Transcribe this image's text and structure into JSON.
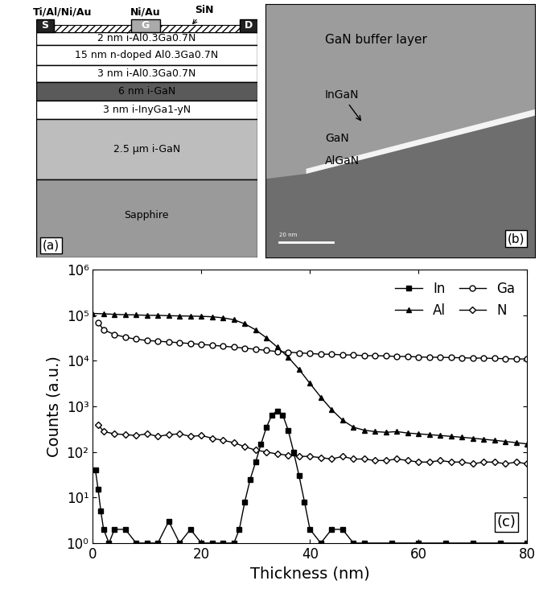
{
  "diagram": {
    "panel_label": "(a)",
    "contacts": {
      "source_metal": "Ti/Al/Ni/Au",
      "gate_metal": "Ni/Au",
      "passivation": "SiN",
      "source": "S",
      "gate": "G",
      "drain": "D"
    },
    "layers": [
      "2 nm i-Al0.3Ga0.7N",
      "15 nm n-doped Al0.3Ga0.7N",
      "3 nm i-Al0.3Ga0.7N",
      "6 nm i-GaN",
      "3 nm i-InyGa1-yN",
      "2.5 μm i-GaN",
      "Sapphire"
    ]
  },
  "image": {
    "panel_label": "(b)",
    "labels": [
      "GaN buffer layer",
      "InGaN",
      "GaN",
      "AlGaN"
    ],
    "scale_bar": "20 nm"
  },
  "chart_data": {
    "type": "line",
    "annotations": [
      "(c)"
    ],
    "x_label": "Thickness (nm)",
    "y_label": "Counts (a.u.)",
    "log": "y",
    "legend": "upper right",
    "xlim": [
      0,
      80
    ],
    "xticks": [
      0,
      20,
      40,
      60,
      80
    ],
    "ylim": [
      1,
      1000000
    ],
    "yticks": [
      {
        "value": 1,
        "label": "10⁰"
      },
      {
        "value": 10,
        "label": "10¹"
      },
      {
        "value": 100,
        "label": "10²"
      },
      {
        "value": 1000,
        "label": "10³"
      },
      {
        "value": 10000,
        "label": "10⁴"
      },
      {
        "value": 100000,
        "label": "10⁵"
      },
      {
        "value": 1000000,
        "label": "10⁶"
      }
    ],
    "series": [
      {
        "name": "In",
        "color": "#000000",
        "marker": "filled_square",
        "line_style": "solid",
        "x": [
          0.5,
          1,
          1.5,
          2,
          3,
          4,
          6,
          8,
          10,
          12,
          14,
          16,
          18,
          20,
          22,
          24,
          26,
          27,
          28,
          29,
          30,
          31,
          32,
          33,
          34,
          35,
          36,
          37,
          38,
          39,
          40,
          42,
          44,
          46,
          48,
          50,
          55,
          60,
          65,
          70,
          75,
          80
        ],
        "values": [
          40,
          15,
          5,
          2,
          1,
          2,
          2,
          1,
          1,
          1,
          3,
          1,
          2,
          1,
          1,
          1,
          1,
          2,
          8,
          25,
          60,
          150,
          350,
          650,
          800,
          650,
          300,
          100,
          30,
          8,
          2,
          1,
          2,
          2,
          1,
          1,
          1,
          1,
          1,
          1,
          1,
          1
        ]
      },
      {
        "name": "Ga",
        "color": "#000000",
        "marker": "open_circle",
        "line_style": "solid",
        "x": [
          1,
          2,
          4,
          6,
          8,
          10,
          12,
          14,
          16,
          18,
          20,
          22,
          24,
          26,
          28,
          30,
          32,
          34,
          36,
          38,
          40,
          42,
          44,
          46,
          48,
          50,
          52,
          54,
          56,
          58,
          60,
          62,
          64,
          66,
          68,
          70,
          72,
          74,
          76,
          78,
          80
        ],
        "values": [
          70000,
          48000,
          38000,
          33000,
          30000,
          28000,
          27000,
          26000,
          25000,
          24000,
          23000,
          22000,
          21000,
          20000,
          19000,
          18000,
          17000,
          16000,
          15500,
          15000,
          14500,
          14000,
          14000,
          13500,
          13500,
          13000,
          13000,
          12800,
          12500,
          12500,
          12200,
          12000,
          12000,
          11800,
          11700,
          11500,
          11500,
          11300,
          11200,
          11000,
          11000
        ]
      },
      {
        "name": "Al",
        "color": "#000000",
        "marker": "filled_triangle",
        "line_style": "solid",
        "x": [
          0,
          2,
          4,
          6,
          8,
          10,
          12,
          14,
          16,
          18,
          20,
          22,
          24,
          26,
          28,
          30,
          32,
          34,
          36,
          38,
          40,
          42,
          44,
          46,
          48,
          50,
          52,
          54,
          56,
          58,
          60,
          62,
          64,
          66,
          68,
          70,
          72,
          74,
          76,
          78,
          80
        ],
        "values": [
          110000,
          108000,
          105000,
          103000,
          102000,
          100000,
          100000,
          98000,
          97000,
          96000,
          95000,
          93000,
          88000,
          80000,
          65000,
          48000,
          32000,
          20000,
          12000,
          6500,
          3200,
          1600,
          850,
          500,
          350,
          300,
          280,
          270,
          280,
          260,
          250,
          240,
          230,
          220,
          210,
          200,
          190,
          180,
          170,
          160,
          150
        ]
      },
      {
        "name": "N",
        "color": "#000000",
        "marker": "open_diamond",
        "line_style": "solid",
        "x": [
          1,
          2,
          4,
          6,
          8,
          10,
          12,
          14,
          16,
          18,
          20,
          22,
          24,
          26,
          28,
          30,
          32,
          34,
          36,
          38,
          40,
          42,
          44,
          46,
          48,
          50,
          52,
          54,
          56,
          58,
          60,
          62,
          64,
          66,
          68,
          70,
          72,
          74,
          76,
          78,
          80
        ],
        "values": [
          400,
          280,
          250,
          240,
          230,
          250,
          220,
          240,
          250,
          220,
          230,
          200,
          180,
          160,
          130,
          110,
          100,
          90,
          85,
          80,
          80,
          75,
          70,
          80,
          70,
          70,
          65,
          65,
          70,
          65,
          60,
          60,
          65,
          60,
          60,
          55,
          60,
          60,
          55,
          60,
          55
        ]
      }
    ]
  }
}
